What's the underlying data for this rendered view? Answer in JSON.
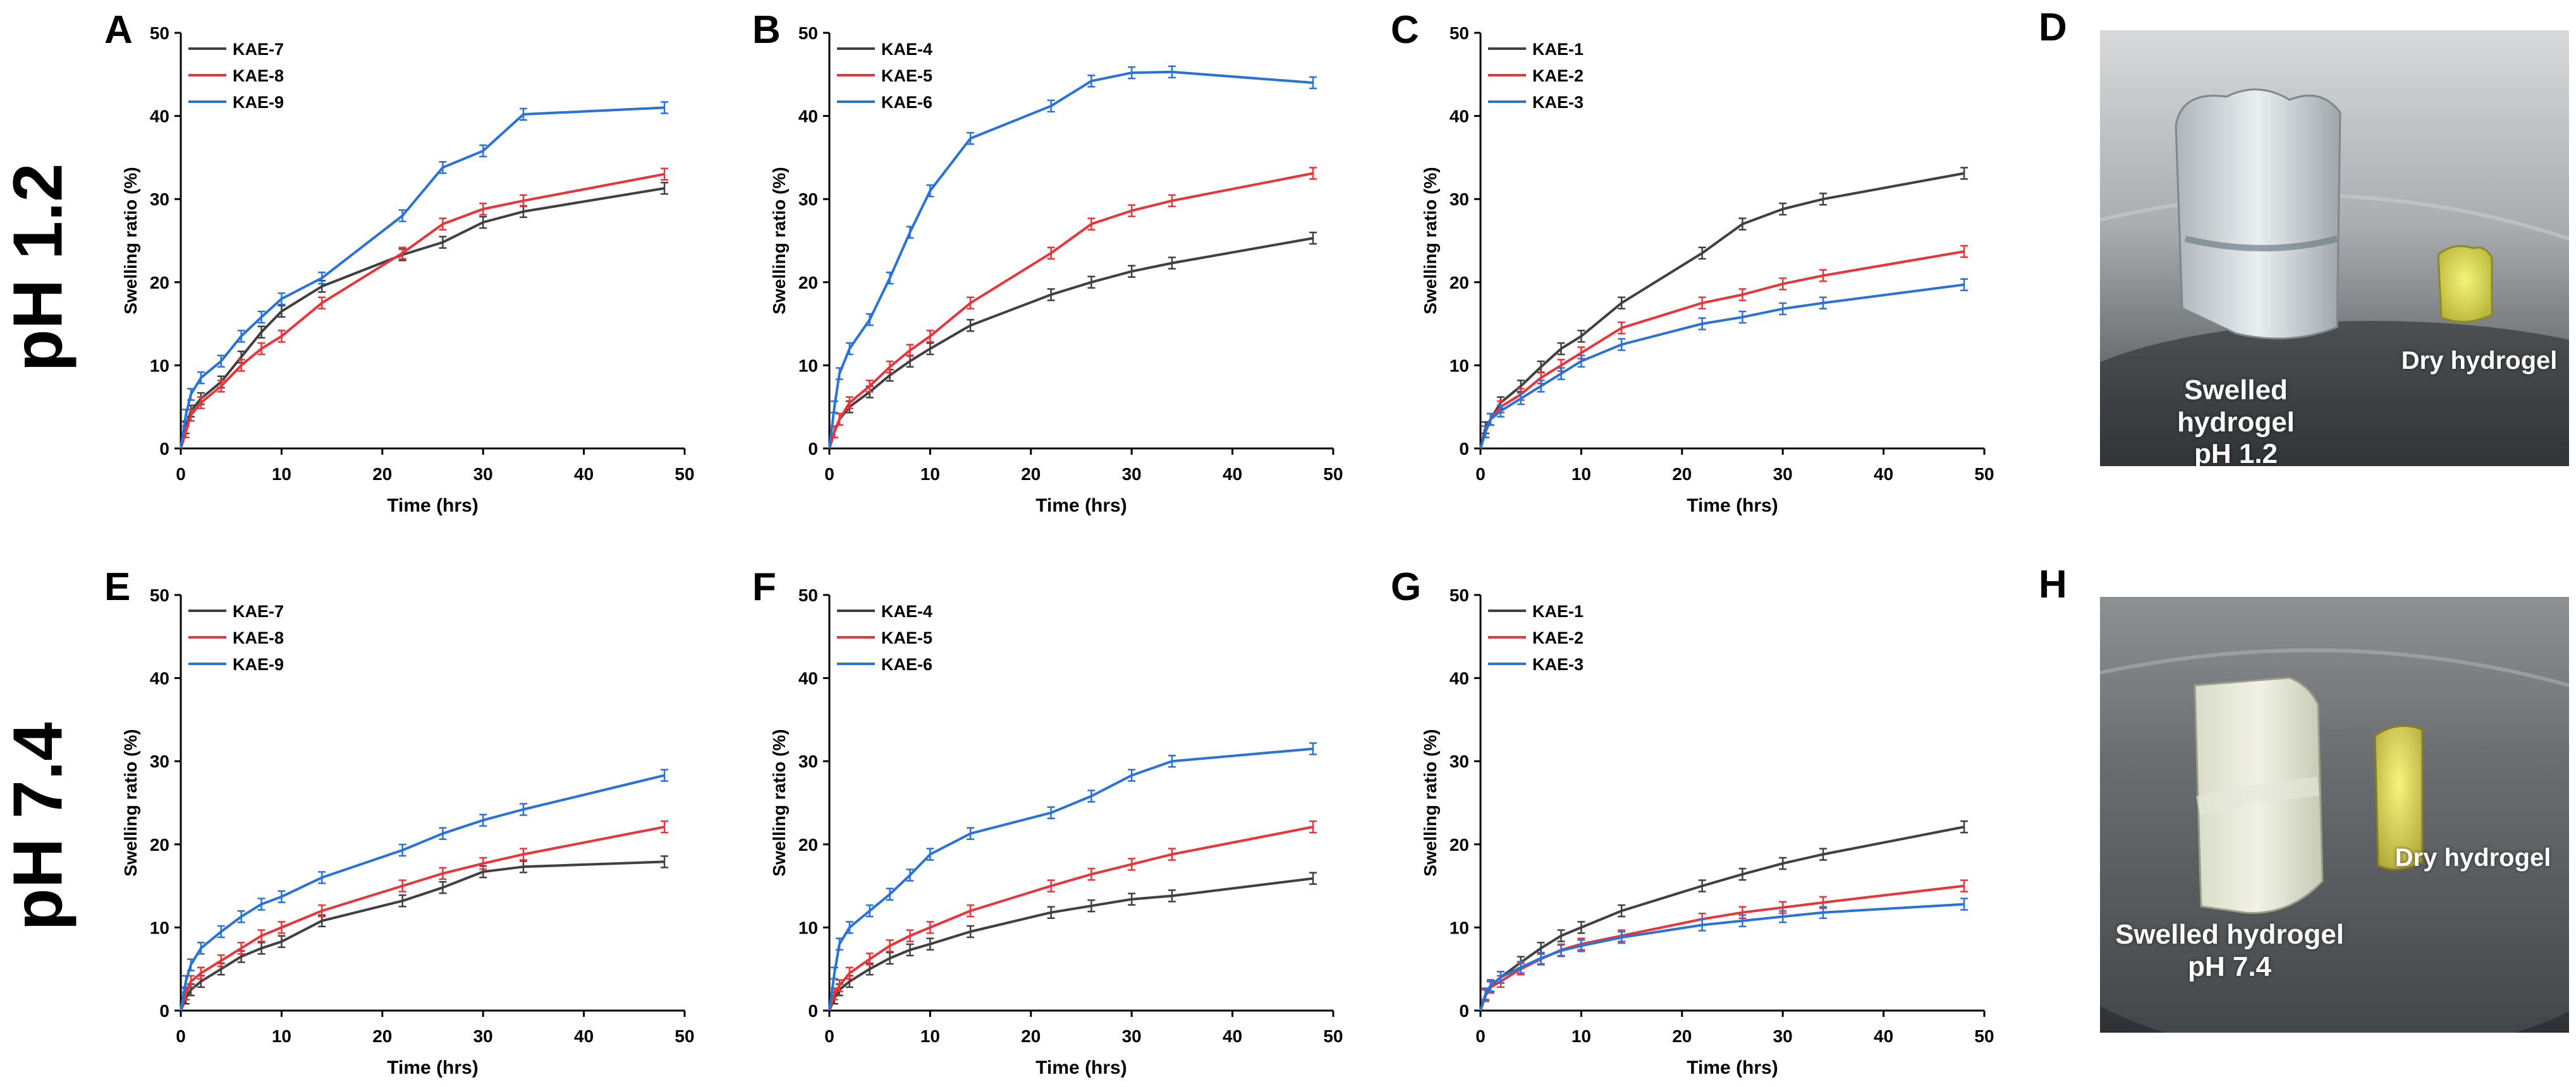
{
  "figure": {
    "row_labels": [
      "pH 1.2",
      "pH 7.4"
    ],
    "photo_panels": [
      {
        "letter": "D",
        "swelled_label": "Swelled hydrogel",
        "swelled_ph": "pH 1.2",
        "dry_label": "Dry hydrogel"
      },
      {
        "letter": "H",
        "swelled_label": "Swelled hydrogel",
        "swelled_ph": "pH 7.4",
        "dry_label": "Dry hydrogel"
      }
    ],
    "colors": {
      "black_series": "#404040",
      "red_series": "#e8353a",
      "blue_series": "#2a72d6"
    }
  },
  "chart_data": [
    {
      "panel": "A",
      "type": "line",
      "xlabel": "Time (hrs)",
      "ylabel": "Swelling ratio (%)",
      "xlim": [
        0,
        50
      ],
      "ylim": [
        0,
        50
      ],
      "xticks": [
        0,
        10,
        20,
        30,
        40,
        50
      ],
      "yticks": [
        0,
        10,
        20,
        30,
        40,
        50
      ],
      "x": [
        0,
        0.5,
        1,
        2,
        4,
        6,
        8,
        10,
        14,
        22,
        26,
        30,
        34,
        48
      ],
      "series": [
        {
          "name": "KAE-7",
          "color": "#404040",
          "values": [
            0,
            2.5,
            4.5,
            6.0,
            8.0,
            11.0,
            14.0,
            16.5,
            19.5,
            23.3,
            24.8,
            27.2,
            28.5,
            31.3
          ]
        },
        {
          "name": "KAE-8",
          "color": "#e8353a",
          "values": [
            0,
            2.0,
            4.0,
            5.5,
            7.5,
            10.0,
            12.0,
            13.5,
            17.5,
            23.5,
            27.0,
            28.8,
            29.8,
            33.0
          ]
        },
        {
          "name": "KAE-9",
          "color": "#2a72d6",
          "values": [
            0,
            4.0,
            6.5,
            8.5,
            10.5,
            13.5,
            15.8,
            18.0,
            20.5,
            28.0,
            33.8,
            35.8,
            40.2,
            41.0
          ]
        }
      ]
    },
    {
      "panel": "B",
      "type": "line",
      "xlabel": "Time (hrs)",
      "ylabel": "Swelling ratio (%)",
      "xlim": [
        0,
        50
      ],
      "ylim": [
        0,
        50
      ],
      "xticks": [
        0,
        10,
        20,
        30,
        40,
        50
      ],
      "yticks": [
        0,
        10,
        20,
        30,
        40,
        50
      ],
      "x": [
        0,
        0.5,
        1,
        2,
        4,
        6,
        8,
        10,
        14,
        22,
        26,
        30,
        34,
        48
      ],
      "series": [
        {
          "name": "KAE-4",
          "color": "#404040",
          "values": [
            0,
            2.0,
            3.5,
            5.0,
            6.8,
            8.8,
            10.5,
            12.0,
            14.8,
            18.5,
            20.0,
            21.3,
            22.3,
            25.3
          ]
        },
        {
          "name": "KAE-5",
          "color": "#e8353a",
          "values": [
            0,
            2.0,
            3.5,
            5.5,
            7.5,
            9.8,
            11.8,
            13.5,
            17.5,
            23.5,
            27.0,
            28.6,
            29.8,
            33.1
          ]
        },
        {
          "name": "KAE-6",
          "color": "#2a72d6",
          "values": [
            0,
            5.0,
            9.0,
            12.0,
            15.5,
            20.5,
            26.0,
            31.0,
            37.3,
            41.2,
            44.2,
            45.2,
            45.3,
            44.0
          ]
        }
      ]
    },
    {
      "panel": "C",
      "type": "line",
      "xlabel": "Time (hrs)",
      "ylabel": "Swelling ratio (%)",
      "xlim": [
        0,
        50
      ],
      "ylim": [
        0,
        50
      ],
      "xticks": [
        0,
        10,
        20,
        30,
        40,
        50
      ],
      "yticks": [
        0,
        10,
        20,
        30,
        40,
        50
      ],
      "x": [
        0,
        0.5,
        1,
        2,
        4,
        6,
        8,
        10,
        14,
        22,
        26,
        30,
        34,
        48
      ],
      "series": [
        {
          "name": "KAE-1",
          "color": "#404040",
          "values": [
            0,
            2.5,
            3.5,
            5.5,
            7.5,
            9.8,
            12.0,
            13.5,
            17.5,
            23.5,
            27.0,
            28.8,
            30.0,
            33.1
          ]
        },
        {
          "name": "KAE-2",
          "color": "#e8353a",
          "values": [
            0,
            2.0,
            3.5,
            5.0,
            6.5,
            8.5,
            10.0,
            11.5,
            14.5,
            17.5,
            18.5,
            19.8,
            20.8,
            23.7
          ]
        },
        {
          "name": "KAE-3",
          "color": "#2a72d6",
          "values": [
            0,
            2.0,
            3.5,
            4.5,
            6.0,
            7.5,
            9.0,
            10.5,
            12.5,
            15.0,
            15.8,
            16.8,
            17.5,
            19.7
          ]
        }
      ]
    },
    {
      "panel": "E",
      "type": "line",
      "xlabel": "Time (hrs)",
      "ylabel": "Swelling ratio (%)",
      "xlim": [
        0,
        50
      ],
      "ylim": [
        0,
        50
      ],
      "xticks": [
        0,
        10,
        20,
        30,
        40,
        50
      ],
      "yticks": [
        0,
        10,
        20,
        30,
        40,
        50
      ],
      "x": [
        0,
        0.5,
        1,
        2,
        4,
        6,
        8,
        10,
        14,
        22,
        26,
        30,
        34,
        48
      ],
      "series": [
        {
          "name": "KAE-7",
          "color": "#404040",
          "values": [
            0,
            1.5,
            2.5,
            3.5,
            5.0,
            6.5,
            7.5,
            8.3,
            10.8,
            13.2,
            14.8,
            16.7,
            17.3,
            17.9
          ]
        },
        {
          "name": "KAE-8",
          "color": "#e8353a",
          "values": [
            0,
            2.0,
            3.5,
            4.5,
            6.0,
            7.5,
            9.0,
            10.0,
            12.0,
            15.0,
            16.5,
            17.7,
            18.8,
            22.1
          ]
        },
        {
          "name": "KAE-9",
          "color": "#2a72d6",
          "values": [
            0,
            3.5,
            5.5,
            7.5,
            9.5,
            11.3,
            12.8,
            13.7,
            16.0,
            19.3,
            21.3,
            22.9,
            24.2,
            28.3
          ]
        }
      ]
    },
    {
      "panel": "F",
      "type": "line",
      "xlabel": "Time (hrs)",
      "ylabel": "Swelling ratio (%)",
      "xlim": [
        0,
        50
      ],
      "ylim": [
        0,
        50
      ],
      "xticks": [
        0,
        10,
        20,
        30,
        40,
        50
      ],
      "yticks": [
        0,
        10,
        20,
        30,
        40,
        50
      ],
      "x": [
        0,
        0.5,
        1,
        2,
        4,
        6,
        8,
        10,
        14,
        22,
        26,
        30,
        34,
        48
      ],
      "series": [
        {
          "name": "KAE-4",
          "color": "#404040",
          "values": [
            0,
            1.5,
            2.5,
            3.5,
            5.0,
            6.3,
            7.3,
            8.0,
            9.5,
            11.8,
            12.6,
            13.4,
            13.8,
            15.9
          ]
        },
        {
          "name": "KAE-5",
          "color": "#e8353a",
          "values": [
            0,
            2.0,
            3.0,
            4.5,
            6.2,
            7.8,
            9.0,
            10.0,
            12.0,
            15.0,
            16.4,
            17.6,
            18.8,
            22.1
          ]
        },
        {
          "name": "KAE-6",
          "color": "#2a72d6",
          "values": [
            0,
            4.5,
            8.0,
            10.0,
            12.0,
            14.0,
            16.3,
            18.8,
            21.3,
            23.8,
            25.8,
            28.3,
            30.0,
            31.5
          ]
        }
      ]
    },
    {
      "panel": "G",
      "type": "line",
      "xlabel": "Time (hrs)",
      "ylabel": "Swelling ratio (%)",
      "xlim": [
        0,
        50
      ],
      "ylim": [
        0,
        50
      ],
      "xticks": [
        0,
        10,
        20,
        30,
        40,
        50
      ],
      "yticks": [
        0,
        10,
        20,
        30,
        40,
        50
      ],
      "x": [
        0,
        0.5,
        1,
        2,
        4,
        6,
        8,
        10,
        14,
        22,
        26,
        30,
        34,
        48
      ],
      "series": [
        {
          "name": "KAE-1",
          "color": "#404040",
          "values": [
            0,
            2.0,
            3.0,
            4.0,
            5.8,
            7.5,
            9.0,
            10.0,
            12.0,
            15.0,
            16.4,
            17.7,
            18.8,
            22.1
          ]
        },
        {
          "name": "KAE-2",
          "color": "#e8353a",
          "values": [
            0,
            1.8,
            2.8,
            3.5,
            5.0,
            6.2,
            7.3,
            8.0,
            9.0,
            11.0,
            11.8,
            12.4,
            13.0,
            15.0
          ]
        },
        {
          "name": "KAE-3",
          "color": "#2a72d6",
          "values": [
            0,
            2.0,
            3.0,
            4.0,
            5.2,
            6.3,
            7.2,
            7.8,
            8.8,
            10.3,
            10.8,
            11.3,
            11.8,
            12.8
          ]
        }
      ]
    }
  ]
}
